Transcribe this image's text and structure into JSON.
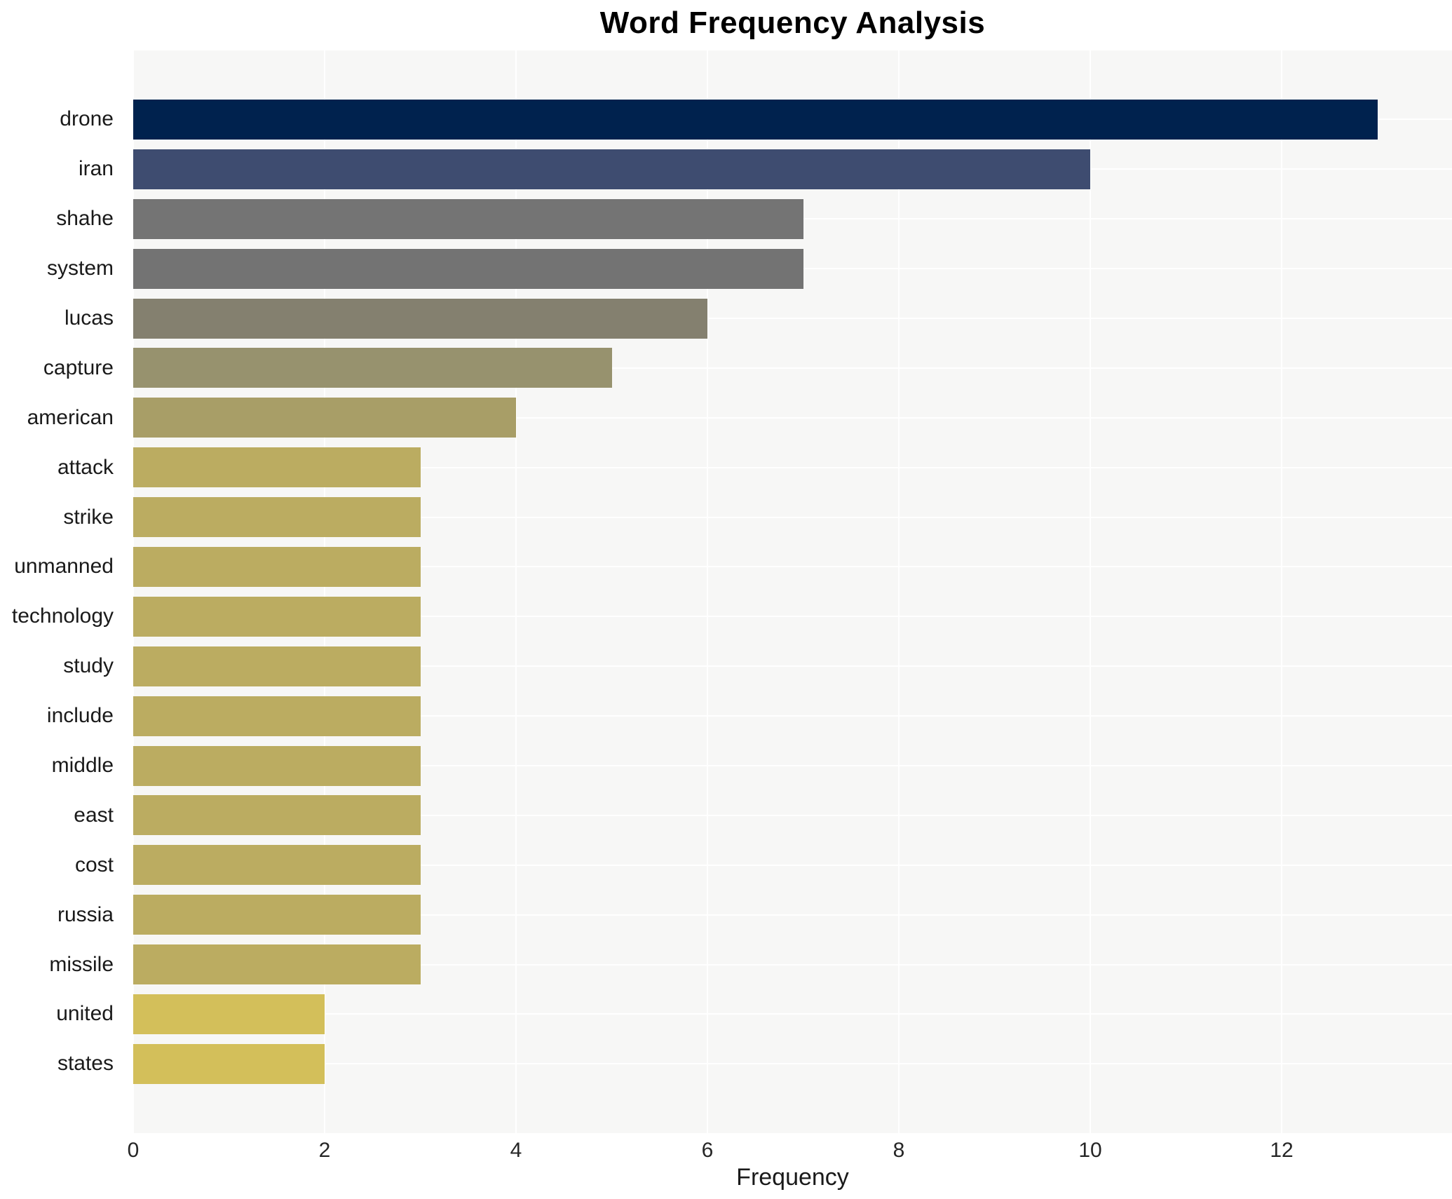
{
  "chart_data": {
    "type": "bar",
    "orientation": "horizontal",
    "title": "Word Frequency Analysis",
    "xlabel": "Frequency",
    "ylabel": "",
    "xlim": [
      0,
      13.78
    ],
    "xticks": [
      0,
      2,
      4,
      6,
      8,
      10,
      12
    ],
    "grid": "on",
    "grid_color": "#ffffff",
    "plot_background": "#f7f7f6",
    "figure_background": "#ffffff",
    "legend": "none",
    "categories": [
      "drone",
      "iran",
      "shahe",
      "system",
      "lucas",
      "capture",
      "american",
      "attack",
      "strike",
      "unmanned",
      "technology",
      "study",
      "include",
      "middle",
      "east",
      "cost",
      "russia",
      "missile",
      "united",
      "states"
    ],
    "values": [
      13,
      10,
      7,
      7,
      6,
      5,
      4,
      3,
      3,
      3,
      3,
      3,
      3,
      3,
      3,
      3,
      3,
      3,
      2,
      2
    ],
    "bar_colors": [
      "#00224e",
      "#3e4c70",
      "#747474",
      "#737373",
      "#84806f",
      "#97926e",
      "#a89e67",
      "#bbac61",
      "#bbac61",
      "#bbac61",
      "#bbac61",
      "#bbac61",
      "#bbac61",
      "#bbac61",
      "#bbac61",
      "#bbac61",
      "#bbac61",
      "#bbac61",
      "#d3bf5a",
      "#d3bf5a"
    ]
  }
}
